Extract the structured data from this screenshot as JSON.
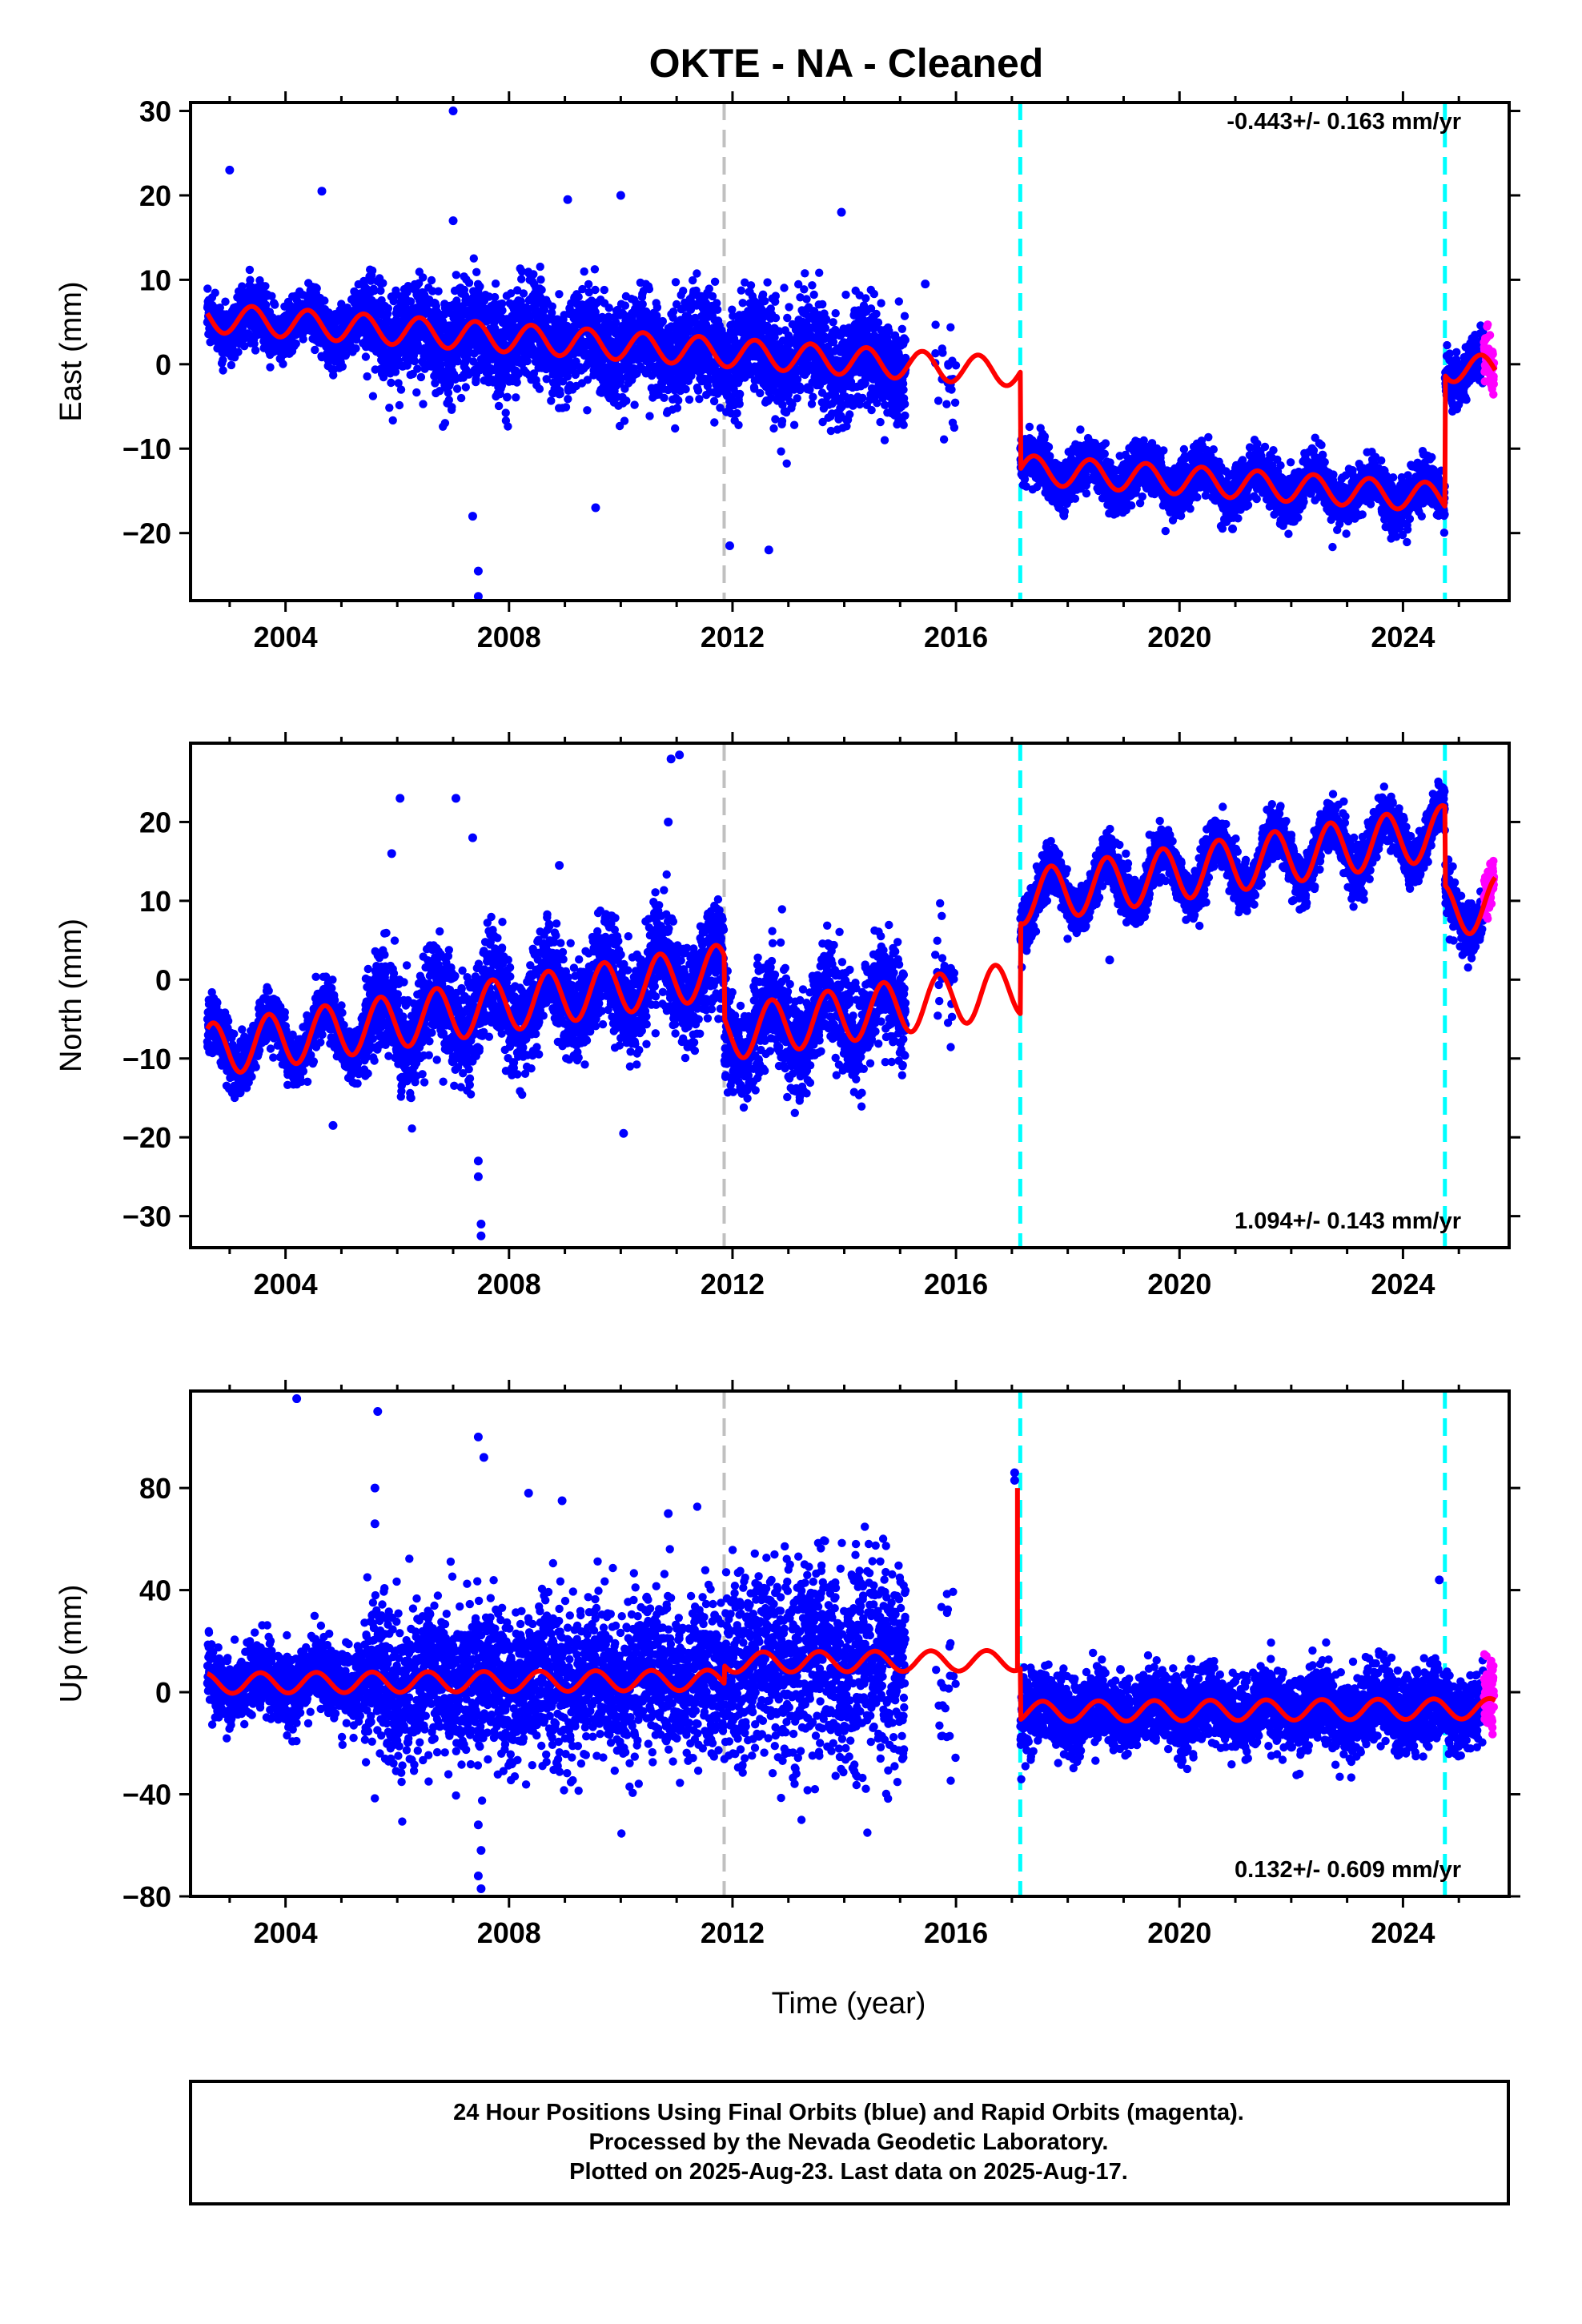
{
  "title": "OKTE  - NA - Cleaned",
  "xlabel": "Time (year)",
  "caption": [
    "24 Hour Positions Using Final Orbits (blue) and Rapid Orbits (magenta).",
    "Processed by the Nevada Geodetic Laboratory.",
    "Plotted on 2025-Aug-23. Last data on 2025-Aug-17."
  ],
  "colors": {
    "final_orbits": "#0000ff",
    "rapid_orbits": "#ff00ff",
    "model": "#ff0000",
    "equipment_change": "#00ffff",
    "earthquake": "#c0c0c0"
  },
  "chart_data": [
    {
      "type": "scatter",
      "component": "east",
      "ylabel": "East (mm)",
      "rate_text": "-0.443+/- 0.163 mm/yr",
      "rate_position": "top-right",
      "xlim": [
        2002.3,
        2025.9
      ],
      "ylim": [
        -28,
        31
      ],
      "xticks": [
        2004,
        2008,
        2012,
        2016,
        2020,
        2024
      ],
      "yticks": [
        -20,
        -10,
        0,
        10,
        20,
        30
      ],
      "data_end": 2025.63,
      "rapid_start": 2025.45,
      "steps": [
        {
          "x": 2011.85,
          "kind": "gray",
          "offset": 0
        },
        {
          "x": 2017.15,
          "kind": "cyan",
          "offset": -11.5
        },
        {
          "x": 2024.75,
          "kind": "cyan",
          "offset": 15.5
        }
      ],
      "gaps": [
        [
          2015.1,
          2015.6
        ],
        [
          2016.0,
          2017.15
        ]
      ],
      "model": {
        "t0": 2002.6,
        "base": 5.5,
        "rate": -0.443,
        "amp": 1.7,
        "phase": 0.15,
        "noise": 1.5,
        "noise_pre2007": 1.6
      },
      "outliers": [
        {
          "x": 2003.0,
          "y": 23
        },
        {
          "x": 2004.65,
          "y": 20.5
        },
        {
          "x": 2007.0,
          "y": 30
        },
        {
          "x": 2007.0,
          "y": 17
        },
        {
          "x": 2007.45,
          "y": -24.5
        },
        {
          "x": 2007.45,
          "y": -27.5
        },
        {
          "x": 2007.35,
          "y": -18
        },
        {
          "x": 2009.05,
          "y": 19.5
        },
        {
          "x": 2010.0,
          "y": 20
        },
        {
          "x": 2011.95,
          "y": -21.5
        },
        {
          "x": 2012.65,
          "y": -22
        },
        {
          "x": 2013.95,
          "y": 18
        },
        {
          "x": 2015.45,
          "y": 9.5
        },
        {
          "x": 2020.95,
          "y": -19.5
        },
        {
          "x": 2009.55,
          "y": -17
        }
      ]
    },
    {
      "type": "scatter",
      "component": "north",
      "ylabel": "North (mm)",
      "rate_text": "1.094+/- 0.143 mm/yr",
      "rate_position": "bottom-right",
      "xlim": [
        2002.3,
        2025.9
      ],
      "ylim": [
        -34,
        30
      ],
      "xticks": [
        2004,
        2008,
        2012,
        2016,
        2020,
        2024
      ],
      "yticks": [
        -30,
        -20,
        -10,
        0,
        10,
        20
      ],
      "data_end": 2025.63,
      "rapid_start": 2025.45,
      "steps": [
        {
          "x": 2011.85,
          "kind": "gray",
          "offset": -8
        },
        {
          "x": 2017.15,
          "kind": "cyan",
          "offset": 11.5
        },
        {
          "x": 2024.75,
          "kind": "cyan",
          "offset": -10
        }
      ],
      "gaps": [
        [
          2015.1,
          2015.6
        ],
        [
          2016.0,
          2017.15
        ]
      ],
      "model": {
        "t0": 2002.6,
        "base": -9.0,
        "rate": 1.094,
        "amp": 3.4,
        "phase": 0.45,
        "noise": 1.6,
        "noise_pre2007": 1.7
      },
      "outliers": [
        {
          "x": 2006.05,
          "y": 23
        },
        {
          "x": 2007.05,
          "y": 23
        },
        {
          "x": 2005.9,
          "y": 16
        },
        {
          "x": 2007.35,
          "y": 18
        },
        {
          "x": 2007.45,
          "y": -23
        },
        {
          "x": 2007.45,
          "y": -25
        },
        {
          "x": 2007.5,
          "y": -31
        },
        {
          "x": 2007.5,
          "y": -32.5
        },
        {
          "x": 2010.9,
          "y": 28
        },
        {
          "x": 2011.05,
          "y": 28.5
        },
        {
          "x": 2010.85,
          "y": 20
        },
        {
          "x": 2010.05,
          "y": -19.5
        },
        {
          "x": 2004.85,
          "y": -18.5
        },
        {
          "x": 2008.9,
          "y": 14.5
        },
        {
          "x": 2018.75,
          "y": 2.5
        }
      ]
    },
    {
      "type": "scatter",
      "component": "up",
      "ylabel": "Up (mm)",
      "rate_text": "0.132+/- 0.609 mm/yr",
      "rate_position": "bottom-right",
      "xlim": [
        2002.3,
        2025.9
      ],
      "ylim": [
        -80,
        118
      ],
      "xticks": [
        2004,
        2008,
        2012,
        2016,
        2020,
        2024
      ],
      "yticks": [
        -80,
        -40,
        0,
        40,
        80
      ],
      "data_end": 2025.63,
      "rapid_start": 2025.45,
      "steps": [
        {
          "x": 2011.85,
          "kind": "gray",
          "offset": 7
        },
        {
          "x": 2017.15,
          "kind": "cyan",
          "offset": -20
        },
        {
          "x": 2024.75,
          "kind": "cyan",
          "offset": 0
        }
      ],
      "gaps": [
        [
          2015.1,
          2015.6
        ],
        [
          2016.0,
          2017.15
        ]
      ],
      "model": {
        "t0": 2002.6,
        "base": 3.5,
        "rate": 0.132,
        "amp": 4.0,
        "phase": 0.3,
        "noise": 7.5,
        "noise_pre2007": 7.0
      },
      "outliers": [
        {
          "x": 2004.2,
          "y": 115
        },
        {
          "x": 2005.65,
          "y": 110
        },
        {
          "x": 2005.6,
          "y": 80
        },
        {
          "x": 2005.6,
          "y": 66
        },
        {
          "x": 2007.45,
          "y": 100
        },
        {
          "x": 2007.55,
          "y": 92
        },
        {
          "x": 2008.35,
          "y": 78
        },
        {
          "x": 2008.95,
          "y": 75
        },
        {
          "x": 2007.45,
          "y": -52
        },
        {
          "x": 2007.5,
          "y": -62
        },
        {
          "x": 2007.45,
          "y": -72
        },
        {
          "x": 2007.5,
          "y": -77
        },
        {
          "x": 2017.05,
          "y": 86
        },
        {
          "x": 2017.05,
          "y": 83
        },
        {
          "x": 2024.65,
          "y": 44
        },
        {
          "x": 2010.85,
          "y": 70
        }
      ],
      "spike": {
        "x": 2017.1,
        "y": 80
      }
    }
  ]
}
